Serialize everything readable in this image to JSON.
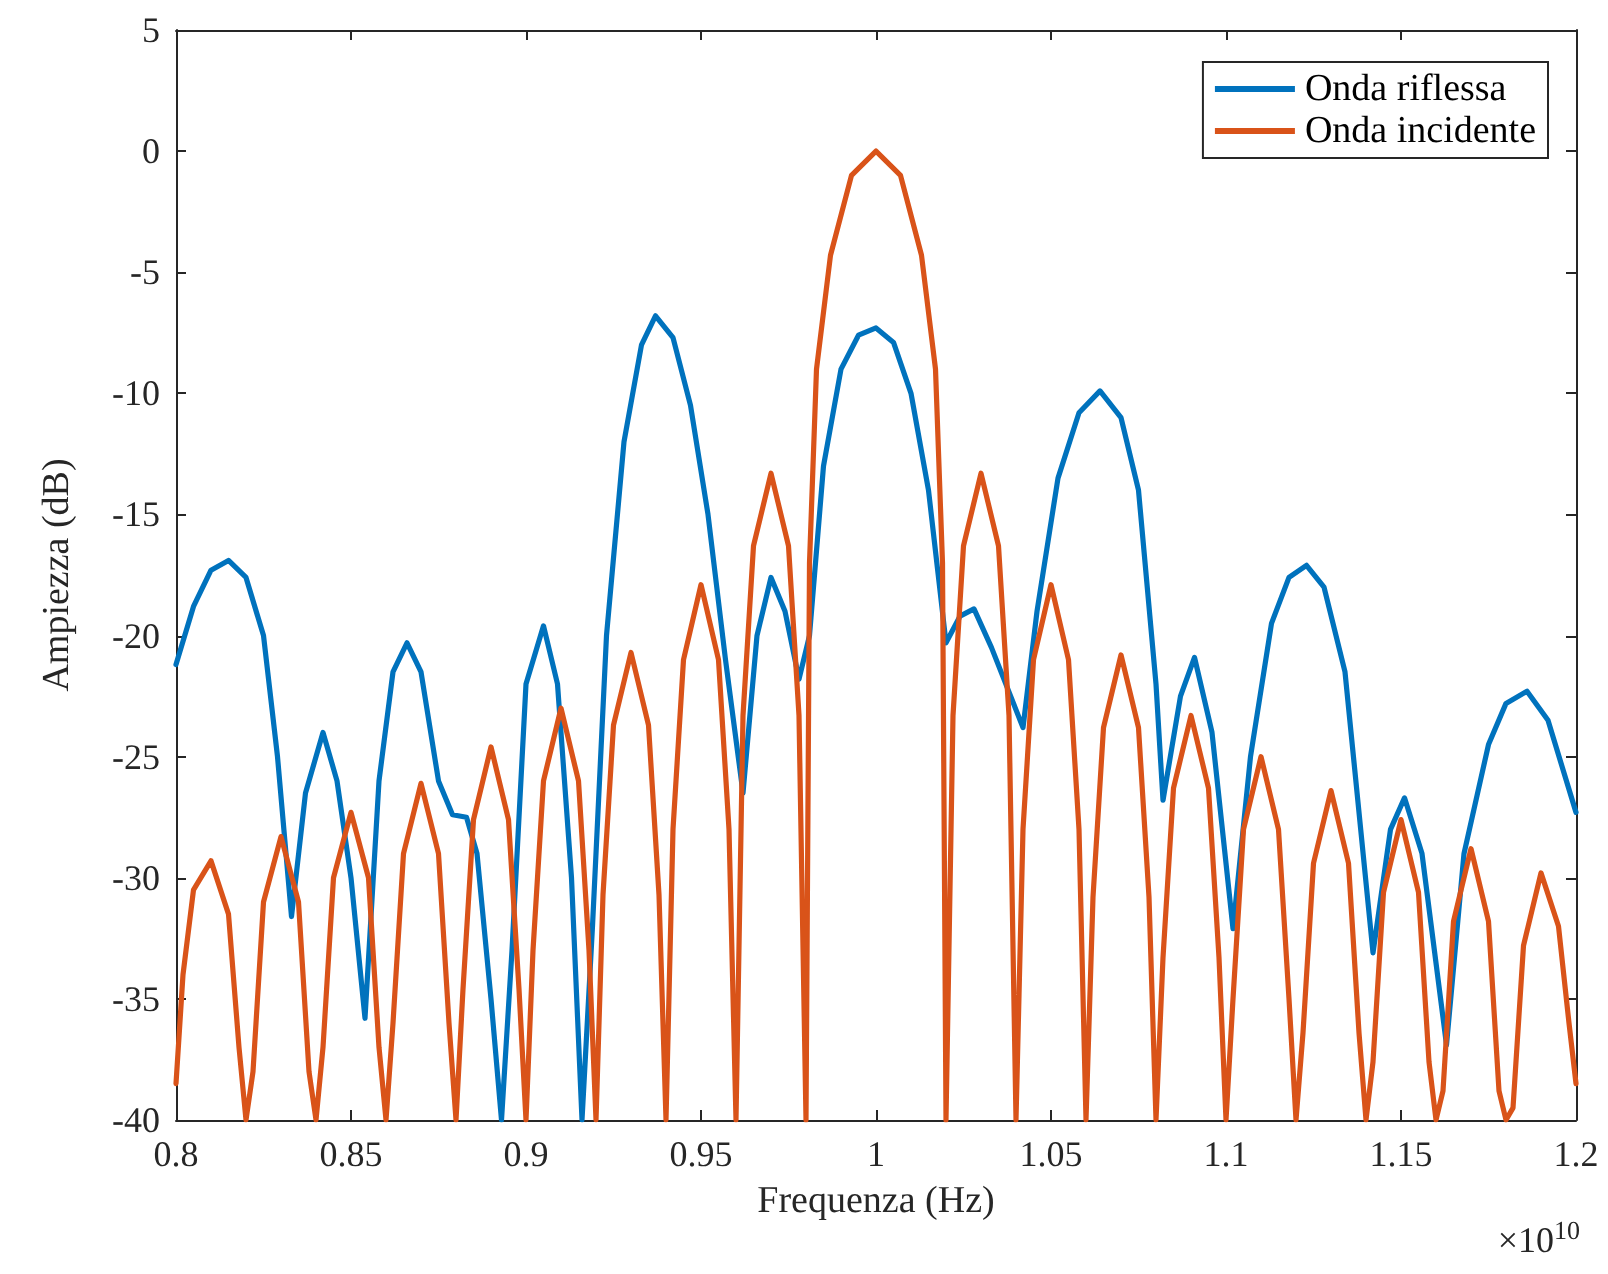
{
  "chart_data": {
    "type": "line",
    "xlabel": "Frequenza (Hz)",
    "ylabel": "Ampiezza (dB)",
    "annotations": [
      "×10$^{10}$"
    ],
    "xlim": [
      0.8,
      1.2
    ],
    "xticks": [
      0.8,
      0.85,
      0.9,
      0.95,
      1,
      1.05,
      1.1,
      1.15,
      1.2
    ],
    "ylim": [
      -40,
      5
    ],
    "yticks": [
      -40,
      -35,
      -30,
      -25,
      -20,
      -15,
      -10,
      -5,
      0,
      5
    ],
    "grid": false,
    "legend": "top right",
    "marker": "none",
    "line_style": "solid",
    "series": [
      {
        "name": "Onda riflessa",
        "color": "#0072bd",
        "x": [
          0.8,
          0.805,
          0.81,
          0.815,
          0.82,
          0.825,
          0.829,
          0.833,
          0.837,
          0.842,
          0.846,
          0.85,
          0.854,
          0.858,
          0.862,
          0.866,
          0.87,
          0.875,
          0.879,
          0.883,
          0.886,
          0.89,
          0.893,
          0.896,
          0.9,
          0.905,
          0.909,
          0.913,
          0.916,
          0.919,
          0.923,
          0.928,
          0.933,
          0.937,
          0.942,
          0.947,
          0.952,
          0.957,
          0.962,
          0.966,
          0.97,
          0.974,
          0.978,
          0.981,
          0.985,
          0.99,
          0.995,
          1,
          1.005,
          1.01,
          1.015,
          1.02,
          1.024,
          1.028,
          1.033,
          1.042,
          1.046,
          1.052,
          1.058,
          1.064,
          1.07,
          1.075,
          1.08,
          1.082,
          1.087,
          1.091,
          1.096,
          1.102,
          1.107,
          1.113,
          1.118,
          1.123,
          1.128,
          1.134,
          1.142,
          1.147,
          1.151,
          1.156,
          1.163,
          1.168,
          1.175,
          1.18,
          1.186,
          1.192,
          1.2
        ],
        "values": [
          -21.2,
          -18.8,
          -17.3,
          -16.9,
          -17.6,
          -20,
          -25,
          -31.6,
          -26.5,
          -24,
          -26,
          -30,
          -35.8,
          -26,
          -21.5,
          -20.3,
          -21.5,
          -26,
          -27.4,
          -27.5,
          -29,
          -35,
          -40,
          -33,
          -22,
          -19.6,
          -22,
          -30,
          -40,
          -32,
          -20,
          -12,
          -8,
          -6.8,
          -7.7,
          -10.5,
          -15,
          -21,
          -26.5,
          -20,
          -17.6,
          -19,
          -21.8,
          -20,
          -13,
          -9,
          -7.6,
          -7.3,
          -7.9,
          -10,
          -14,
          -20.3,
          -19.2,
          -18.9,
          -20.5,
          -23.8,
          -19,
          -13.5,
          -10.8,
          -9.9,
          -11,
          -14,
          -22,
          -26.8,
          -22.5,
          -20.9,
          -24,
          -32.1,
          -25,
          -19.5,
          -17.6,
          -17.1,
          -18,
          -21.5,
          -33.1,
          -28,
          -26.7,
          -29,
          -36.9,
          -29,
          -24.5,
          -22.8,
          -22.3,
          -23.5,
          -27.3
        ]
      },
      {
        "name": "Onda incidente",
        "color": "#d95319",
        "x": [
          0.8,
          0.802,
          0.805,
          0.81,
          0.815,
          0.818,
          0.82,
          0.822,
          0.825,
          0.83,
          0.835,
          0.838,
          0.84,
          0.842,
          0.845,
          0.85,
          0.855,
          0.858,
          0.86,
          0.862,
          0.865,
          0.87,
          0.875,
          0.878,
          0.88,
          0.882,
          0.885,
          0.89,
          0.895,
          0.898,
          0.9,
          0.902,
          0.905,
          0.91,
          0.915,
          0.918,
          0.92,
          0.922,
          0.925,
          0.93,
          0.935,
          0.938,
          0.94,
          0.942,
          0.945,
          0.95,
          0.955,
          0.958,
          0.96,
          0.962,
          0.965,
          0.97,
          0.975,
          0.978,
          0.98,
          0.981,
          0.983,
          0.987,
          0.993,
          1,
          1.007,
          1.013,
          1.017,
          1.019,
          1.02,
          1.022,
          1.025,
          1.03,
          1.035,
          1.038,
          1.04,
          1.042,
          1.045,
          1.05,
          1.055,
          1.058,
          1.06,
          1.062,
          1.065,
          1.07,
          1.075,
          1.078,
          1.08,
          1.082,
          1.085,
          1.09,
          1.095,
          1.098,
          1.1,
          1.102,
          1.105,
          1.11,
          1.115,
          1.118,
          1.12,
          1.122,
          1.125,
          1.13,
          1.135,
          1.138,
          1.14,
          1.142,
          1.145,
          1.15,
          1.155,
          1.158,
          1.16,
          1.162,
          1.165,
          1.17,
          1.175,
          1.178,
          1.18,
          1.182,
          1.185,
          1.19,
          1.195,
          1.198,
          1.2
        ],
        "values": [
          -38.5,
          -34,
          -30.5,
          -29.3,
          -31.5,
          -37,
          -40,
          -38,
          -31,
          -28.3,
          -31,
          -38,
          -40,
          -37,
          -30,
          -27.3,
          -30,
          -37,
          -40,
          -36,
          -29,
          -26.1,
          -29,
          -36,
          -40,
          -34.6,
          -27.6,
          -24.6,
          -27.6,
          -34.6,
          -40,
          -33,
          -26,
          -23,
          -26,
          -33,
          -40,
          -30.7,
          -23.7,
          -20.7,
          -23.7,
          -30.7,
          -40,
          -28,
          -21,
          -17.9,
          -21,
          -28,
          -40,
          -23.3,
          -16.3,
          -13.3,
          -16.3,
          -23.3,
          -40,
          -17,
          -9,
          -4.3,
          -1,
          0,
          -1,
          -4.3,
          -9,
          -17,
          -40,
          -23.3,
          -16.3,
          -13.3,
          -16.3,
          -23.3,
          -40,
          -28,
          -21,
          -17.9,
          -21,
          -28,
          -40,
          -30.8,
          -23.8,
          -20.8,
          -23.8,
          -30.8,
          -40,
          -33.3,
          -26.3,
          -23.3,
          -26.3,
          -33.3,
          -40,
          -35,
          -28,
          -25,
          -28,
          -35,
          -40,
          -36.4,
          -29.4,
          -26.4,
          -29.4,
          -36.4,
          -40,
          -37.6,
          -30.6,
          -27.6,
          -30.6,
          -37.6,
          -40,
          -38.8,
          -31.8,
          -28.8,
          -31.8,
          -38.8,
          -40,
          -39.5,
          -32.8,
          -29.8,
          -32,
          -36,
          -38.5
        ]
      }
    ]
  }
}
